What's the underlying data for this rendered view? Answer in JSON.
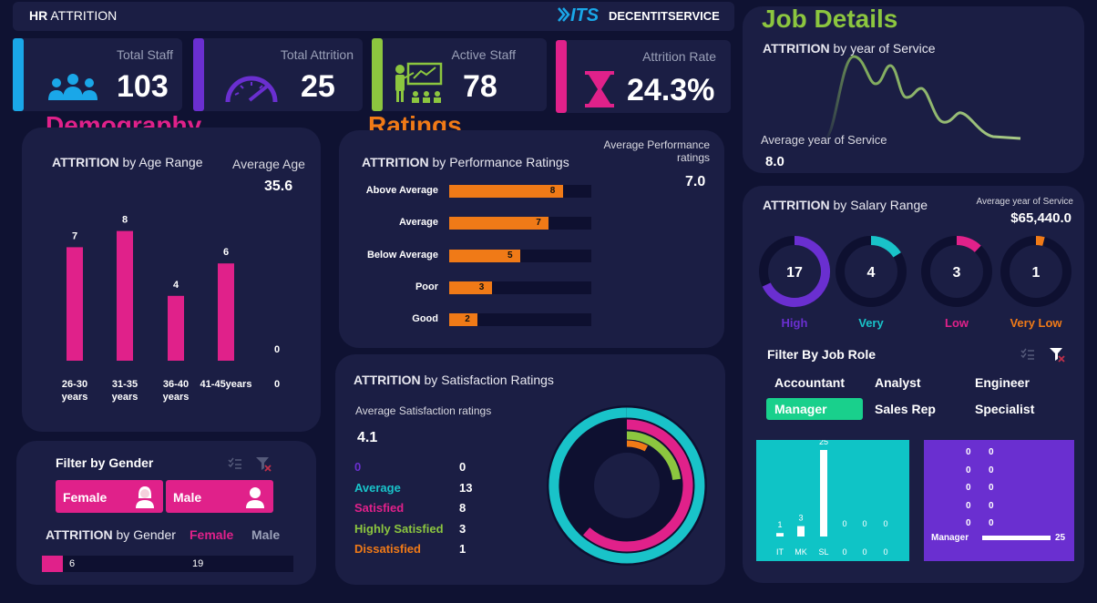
{
  "header": {
    "title_bold": "HR",
    "title_rest": "ATTRITION",
    "logo": "ITS",
    "brand": "DECENTITSERVICE"
  },
  "kpis": [
    {
      "label": "Total Staff",
      "value": "103",
      "icon": "people-icon",
      "color": "#1aa7e8"
    },
    {
      "label": "Total Attrition",
      "value": "25",
      "icon": "gauge-icon",
      "color": "#6a2fd0"
    },
    {
      "label": "Active Staff",
      "value": "78",
      "icon": "presentation-icon",
      "color": "#8cc63f"
    },
    {
      "label": "Attrition Rate",
      "value": "24.3%",
      "icon": "hourglass-icon",
      "color": "#e0218a"
    }
  ],
  "demography": {
    "section_title": "Demography",
    "chart_title_bold": "ATTRITION",
    "chart_title_rest": "by Age Range",
    "avg_age_label": "Average Age",
    "avg_age": "35.6",
    "bars": [
      {
        "label1": "26-30",
        "label2": "years",
        "value": 7
      },
      {
        "label1": "31-35",
        "label2": "years",
        "value": 8
      },
      {
        "label1": "36-40",
        "label2": "years",
        "value": 4
      },
      {
        "label1": "41-45years",
        "label2": "",
        "value": 6
      },
      {
        "label1": "0",
        "label2": "",
        "value": 0
      }
    ]
  },
  "ratings": {
    "section_title": "Ratings",
    "chart_title_bold": "ATTRITION",
    "chart_title_rest": "by Performance Ratings",
    "avg_label1": "Average Performance",
    "avg_label2": "ratings",
    "avg": "7.0",
    "bars": [
      {
        "label": "Above Average",
        "value": 8
      },
      {
        "label": "Average",
        "value": 7
      },
      {
        "label": "Below Average",
        "value": 5
      },
      {
        "label": "Poor",
        "value": 3
      },
      {
        "label": "Good",
        "value": 2
      }
    ]
  },
  "satisfaction": {
    "chart_title_bold": "ATTRITION",
    "chart_title_rest": "by Satisfaction Ratings",
    "avg_label": "Average Satisfaction ratings",
    "avg": "4.1",
    "items": [
      {
        "label": "0",
        "value": "0",
        "color": "#6a2fd0"
      },
      {
        "label": "Average",
        "value": "13",
        "color": "#19c3c9"
      },
      {
        "label": "Satisfied",
        "value": "8",
        "color": "#e0218a"
      },
      {
        "label": "Highly Satisfied",
        "value": "3",
        "color": "#8cc63f"
      },
      {
        "label": "Dissatisfied",
        "value": "1",
        "color": "#f07a17"
      }
    ]
  },
  "gender": {
    "filter_title": "Filter by Gender",
    "female_btn": "Female",
    "male_btn": "Male",
    "chart_title_bold": "ATTRITION",
    "chart_title_rest": "by Gender",
    "legend_female": "Female",
    "legend_male": "Male",
    "female_value": "6",
    "male_value": "19"
  },
  "job": {
    "section_title": "Job Details",
    "service_title_bold": "ATTRITION",
    "service_title_rest": "by year of Service",
    "avg_service_label": "Average year of Service",
    "avg_service": "8.0",
    "salary_title_bold": "ATTRITION",
    "salary_title_rest": "by Salary Range",
    "salary_avg_label": "Average year of Service",
    "salary_avg": "$65,440.0",
    "salary_rings": [
      {
        "label": "High",
        "value": "17",
        "color": "#6a2fd0",
        "fraction": 0.68
      },
      {
        "label": "Very",
        "value": "4",
        "color": "#19c3c9",
        "fraction": 0.16
      },
      {
        "label": "Low",
        "value": "3",
        "color": "#e0218a",
        "fraction": 0.12
      },
      {
        "label": "Very Low",
        "value": "1",
        "color": "#f07a17",
        "fraction": 0.04
      }
    ],
    "filter_title": "Filter By Job Role",
    "roles": [
      "Accountant",
      "Analyst",
      "Engineer",
      "Manager",
      "Sales Rep",
      "Specialist"
    ],
    "dept_chart": {
      "categories": [
        "IT",
        "MK",
        "SL",
        "0",
        "0",
        "0"
      ],
      "values": [
        1,
        3,
        25,
        0,
        0,
        0
      ]
    },
    "role_chart": {
      "zero_labels": [
        "0",
        "0",
        "0",
        "0",
        "0"
      ],
      "bar_label": "Manager",
      "bar_value": "25"
    }
  }
}
